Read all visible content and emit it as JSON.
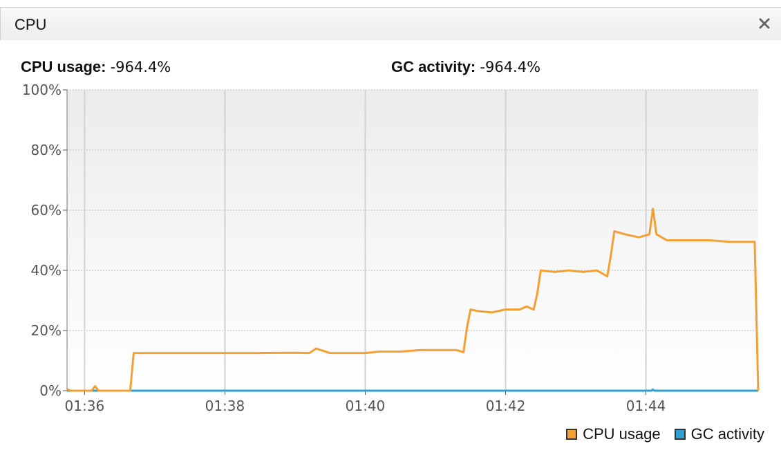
{
  "panel": {
    "title": "CPU",
    "close_label": "×"
  },
  "stats": {
    "cpu_label": "CPU usage:",
    "cpu_value": "-964.4%",
    "gc_label": "GC activity:",
    "gc_value": "-964.4%"
  },
  "colors": {
    "cpu": "#f2a035",
    "gc": "#2e9fd0",
    "grid": "#cfcfcf"
  },
  "chart_data": {
    "type": "line",
    "x_ticks": [
      "01:36",
      "01:38",
      "01:40",
      "01:42",
      "01:44"
    ],
    "y_ticks": [
      "0%",
      "20%",
      "40%",
      "60%",
      "80%",
      "100%"
    ],
    "ylim": [
      0,
      100
    ],
    "xlim_minutes": [
      95.75,
      105.6
    ],
    "legend": "bottom-right",
    "grid": true,
    "series": [
      {
        "name": "CPU usage",
        "color": "#f2a035",
        "points": [
          [
            95.75,
            0.5
          ],
          [
            95.8,
            0
          ],
          [
            96.1,
            0
          ],
          [
            96.15,
            1.5
          ],
          [
            96.2,
            0
          ],
          [
            96.5,
            0
          ],
          [
            96.65,
            0
          ],
          [
            96.7,
            12.5
          ],
          [
            97.5,
            12.5
          ],
          [
            98.0,
            12.5
          ],
          [
            98.5,
            12.5
          ],
          [
            99.0,
            12.6
          ],
          [
            99.2,
            12.5
          ],
          [
            99.3,
            14.0
          ],
          [
            99.5,
            12.5
          ],
          [
            100.0,
            12.5
          ],
          [
            100.2,
            13.0
          ],
          [
            100.5,
            13.0
          ],
          [
            100.8,
            13.5
          ],
          [
            101.0,
            13.5
          ],
          [
            101.3,
            13.5
          ],
          [
            101.4,
            12.8
          ],
          [
            101.45,
            21
          ],
          [
            101.5,
            27
          ],
          [
            101.6,
            26.5
          ],
          [
            101.8,
            26
          ],
          [
            102.0,
            27
          ],
          [
            102.2,
            27
          ],
          [
            102.3,
            28
          ],
          [
            102.4,
            27
          ],
          [
            102.45,
            32
          ],
          [
            102.5,
            40
          ],
          [
            102.7,
            39.5
          ],
          [
            102.9,
            40
          ],
          [
            103.1,
            39.5
          ],
          [
            103.3,
            40
          ],
          [
            103.45,
            38
          ],
          [
            103.5,
            45
          ],
          [
            103.55,
            53
          ],
          [
            103.7,
            52
          ],
          [
            103.9,
            51
          ],
          [
            104.05,
            52
          ],
          [
            104.1,
            60.5
          ],
          [
            104.15,
            52
          ],
          [
            104.3,
            50
          ],
          [
            104.6,
            50
          ],
          [
            104.9,
            50
          ],
          [
            105.2,
            49.5
          ],
          [
            105.55,
            49.5
          ],
          [
            105.6,
            0
          ]
        ]
      },
      {
        "name": "GC activity",
        "color": "#2e9fd0",
        "points": [
          [
            95.75,
            0
          ],
          [
            104.08,
            0
          ],
          [
            104.1,
            0.4
          ],
          [
            104.12,
            0
          ],
          [
            105.6,
            0
          ]
        ]
      }
    ]
  }
}
